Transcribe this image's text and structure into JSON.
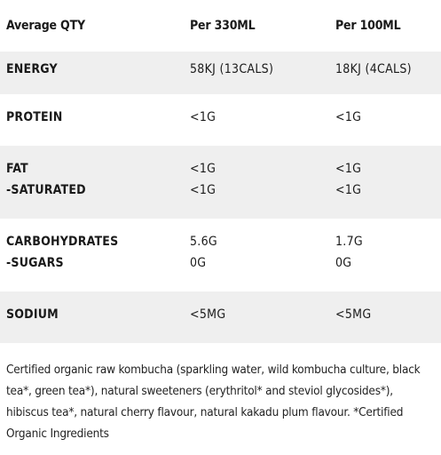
{
  "header": {
    "col1": "Average QTY",
    "col2": "Per 330ML",
    "col3": "Per 100ML"
  },
  "rows": [
    {
      "labels": [
        "ENERGY"
      ],
      "per330": [
        "58KJ (13CALS)"
      ],
      "per100": [
        "18KJ (4CALS)"
      ]
    },
    {
      "labels": [
        "PROTEIN"
      ],
      "per330": [
        "<1G"
      ],
      "per100": [
        "<1G"
      ]
    },
    {
      "labels": [
        "FAT",
        "-SATURATED"
      ],
      "per330": [
        "<1G",
        "<1G"
      ],
      "per100": [
        "<1G",
        "<1G"
      ]
    },
    {
      "labels": [
        "CARBOHYDRATES",
        "-SUGARS"
      ],
      "per330": [
        "5.6G",
        "0G"
      ],
      "per100": [
        "1.7G",
        "0G"
      ]
    },
    {
      "labels": [
        "SODIUM"
      ],
      "per330": [
        "<5MG"
      ],
      "per100": [
        "<5MG"
      ]
    }
  ],
  "ingredients": "Certified organic raw kombucha (sparkling water, wild kombucha culture, black tea*, green tea*), natural sweeteners (erythritol* and steviol glycosides*), hibiscus tea*, natural cherry flavour, natural kakadu plum flavour. *Certified Organic Ingredients"
}
